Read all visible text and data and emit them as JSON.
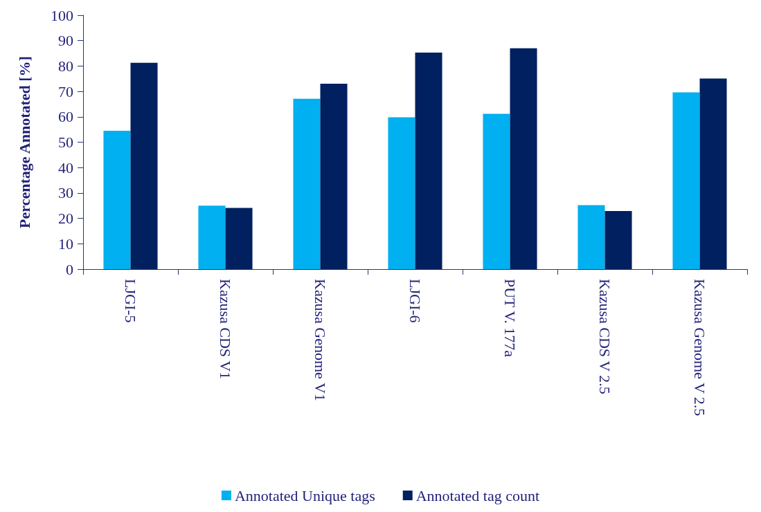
{
  "chart_data": {
    "type": "bar",
    "ylabel": "Percentage Annotated [%]",
    "categories": [
      "LJGI-5",
      "Kazusa CDS V1",
      "Kazusa Genome V1",
      "LJGI-6",
      "PUT V. 177a",
      "Kazusa CDS V 2.5",
      "Kazusa Genome V 2.5"
    ],
    "series": [
      {
        "name": "Annotated Unique tags",
        "color": "#00b0f0",
        "values": [
          54.5,
          25.0,
          67.1,
          59.8,
          61.2,
          25.2,
          69.6
        ]
      },
      {
        "name": "Annotated tag count",
        "color": "#002060",
        "values": [
          81.3,
          24.1,
          73.0,
          85.3,
          87.0,
          22.9,
          75.1
        ]
      }
    ],
    "ylim": [
      0,
      100
    ],
    "yticks": [
      0,
      10,
      20,
      30,
      40,
      50,
      60,
      70,
      80,
      90,
      100
    ],
    "grid": false,
    "legend": "bottom"
  }
}
